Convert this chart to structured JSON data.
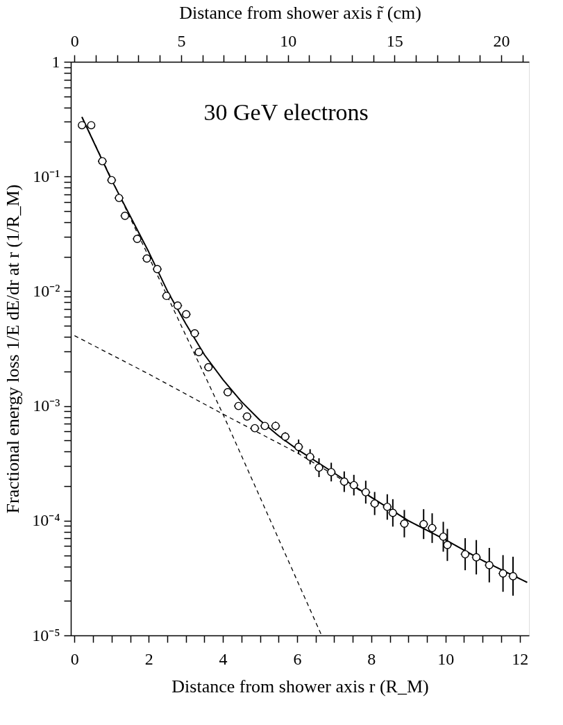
{
  "chart_data": {
    "type": "scatter",
    "xlabel": "Distance from shower axis r (R_M)",
    "x2label": "Distance from shower axis r̃ (cm)",
    "ylabel": "Fractional energy loss 1/E dE/dr at r (1/R_M)",
    "annotations": [
      "30 GeV electrons"
    ],
    "log": "y",
    "grid": false,
    "marker": "circle",
    "xlim": [
      -0.1,
      12.25
    ],
    "xticks": [
      0,
      {
        "value": 0.5,
        "label": null
      },
      {
        "value": 1,
        "label": null
      },
      {
        "value": 1.5,
        "label": null
      },
      2,
      {
        "value": 2.5,
        "label": null
      },
      {
        "value": 3,
        "label": null
      },
      {
        "value": 3.5,
        "label": null
      },
      4,
      {
        "value": 4.5,
        "label": null
      },
      {
        "value": 5,
        "label": null
      },
      {
        "value": 5.5,
        "label": null
      },
      6,
      {
        "value": 6.5,
        "label": null
      },
      {
        "value": 7,
        "label": null
      },
      {
        "value": 7.5,
        "label": null
      },
      8,
      {
        "value": 8.5,
        "label": null
      },
      {
        "value": 9,
        "label": null
      },
      {
        "value": 9.5,
        "label": null
      },
      10,
      {
        "value": 10.5,
        "label": null
      },
      {
        "value": 11,
        "label": null
      },
      {
        "value": 11.5,
        "label": null
      },
      12
    ],
    "x2lim": [
      -0.17,
      21.3
    ],
    "x2ticks": [
      0,
      {
        "value": 1,
        "label": null
      },
      {
        "value": 2,
        "label": null
      },
      {
        "value": 3,
        "label": null
      },
      {
        "value": 4,
        "label": null
      },
      5,
      {
        "value": 6,
        "label": null
      },
      {
        "value": 7,
        "label": null
      },
      {
        "value": 8,
        "label": null
      },
      {
        "value": 9,
        "label": null
      },
      10,
      {
        "value": 11,
        "label": null
      },
      {
        "value": 12,
        "label": null
      },
      {
        "value": 13,
        "label": null
      },
      {
        "value": 14,
        "label": null
      },
      15,
      {
        "value": 16,
        "label": null
      },
      {
        "value": 17,
        "label": null
      },
      {
        "value": 18,
        "label": null
      },
      {
        "value": 19,
        "label": null
      },
      20,
      {
        "value": 21,
        "label": null
      }
    ],
    "ylim": [
      1e-05,
      1
    ],
    "yticks": [
      {
        "value": 1e-05,
        "label": "10⁻⁵"
      },
      {
        "value": 2e-05,
        "label": null
      },
      {
        "value": 3e-05,
        "label": null
      },
      {
        "value": 4e-05,
        "label": null
      },
      {
        "value": 5e-05,
        "label": null
      },
      {
        "value": 6e-05,
        "label": null
      },
      {
        "value": 7e-05,
        "label": null
      },
      {
        "value": 8e-05,
        "label": null
      },
      {
        "value": 9e-05,
        "label": null
      },
      {
        "value": 0.0001,
        "label": "10⁻⁴"
      },
      {
        "value": 0.0002,
        "label": null
      },
      {
        "value": 0.0003,
        "label": null
      },
      {
        "value": 0.0004,
        "label": null
      },
      {
        "value": 0.0005,
        "label": null
      },
      {
        "value": 0.0006,
        "label": null
      },
      {
        "value": 0.0007,
        "label": null
      },
      {
        "value": 0.0008,
        "label": null
      },
      {
        "value": 0.0009,
        "label": null
      },
      {
        "value": 0.001,
        "label": "10⁻³"
      },
      {
        "value": 0.002,
        "label": null
      },
      {
        "value": 0.003,
        "label": null
      },
      {
        "value": 0.004,
        "label": null
      },
      {
        "value": 0.005,
        "label": null
      },
      {
        "value": 0.006,
        "label": null
      },
      {
        "value": 0.007,
        "label": null
      },
      {
        "value": 0.008,
        "label": null
      },
      {
        "value": 0.009,
        "label": null
      },
      {
        "value": 0.01,
        "label": "10⁻²"
      },
      {
        "value": 0.02,
        "label": null
      },
      {
        "value": 0.03,
        "label": null
      },
      {
        "value": 0.04,
        "label": null
      },
      {
        "value": 0.05,
        "label": null
      },
      {
        "value": 0.06,
        "label": null
      },
      {
        "value": 0.07,
        "label": null
      },
      {
        "value": 0.08,
        "label": null
      },
      {
        "value": 0.09,
        "label": null
      },
      {
        "value": 0.1,
        "label": "10⁻¹"
      },
      {
        "value": 0.2,
        "label": null
      },
      {
        "value": 0.3,
        "label": null
      },
      {
        "value": 0.4,
        "label": null
      },
      {
        "value": 0.5,
        "label": null
      },
      {
        "value": 0.6,
        "label": null
      },
      {
        "value": 0.7,
        "label": null
      },
      {
        "value": 0.8,
        "label": null
      },
      {
        "value": 0.9,
        "label": null
      },
      1
    ],
    "series": [
      {
        "type": "line",
        "marker": "none",
        "line_style": "dashed",
        "color": "#000000",
        "x": [
          0.2,
          2,
          4,
          6.66
        ],
        "values": [
          0.33,
          0.02,
          0.00085,
          1e-05
        ]
      },
      {
        "type": "line",
        "marker": "none",
        "line_style": "dashed",
        "color": "#000000",
        "x": [
          0,
          2,
          4,
          6,
          7,
          8,
          9,
          10,
          11,
          12.2
        ],
        "values": [
          0.0041,
          0.0019,
          0.00085,
          0.00039,
          0.00025,
          0.00016,
          0.0001,
          6.8e-05,
          4.5e-05,
          2.9e-05
        ]
      },
      {
        "type": "line",
        "marker": "none",
        "line_style": "solid",
        "color": "#000000",
        "x": [
          0.2,
          1,
          2,
          2.5,
          3,
          3.5,
          4,
          4.5,
          5,
          5.5,
          6,
          7,
          8,
          9,
          10,
          11,
          12.2
        ],
        "values": [
          0.33,
          0.093,
          0.022,
          0.0101,
          0.0052,
          0.0028,
          0.0017,
          0.00109,
          0.00075,
          0.00055,
          0.00042,
          0.00026,
          0.00016,
          0.0001,
          6.8e-05,
          4.5e-05,
          2.9e-05
        ]
      },
      {
        "color": "#000000",
        "x": [
          0.2,
          0.45,
          0.75,
          1.0,
          1.2,
          1.36,
          1.69,
          1.95,
          2.23,
          2.48,
          2.78,
          3.01,
          3.24,
          3.35,
          3.61,
          4.13,
          4.42,
          4.65,
          4.86,
          5.13,
          5.42,
          5.68,
          6.04,
          6.35,
          6.59,
          6.92,
          7.27,
          7.53,
          7.85,
          8.09,
          8.43,
          8.58,
          8.89,
          9.41,
          9.64,
          9.94,
          10.05,
          10.53,
          10.83,
          11.18,
          11.55,
          11.82
        ],
        "values": [
          0.28,
          0.28,
          0.136,
          0.093,
          0.065,
          0.0455,
          0.0286,
          0.0193,
          0.0156,
          0.0091,
          0.0075,
          0.0063,
          0.0043,
          0.00295,
          0.00218,
          0.00132,
          0.001,
          0.00081,
          0.00064,
          0.00067,
          0.00067,
          0.00054,
          0.00044,
          0.00036,
          0.00029,
          0.000265,
          0.000219,
          0.000204,
          0.000177,
          0.000141,
          0.000132,
          0.000117,
          9.44e-05,
          9.34e-05,
          8.63e-05,
          7.25e-05,
          6.15e-05,
          5.1e-05,
          4.8e-05,
          4.1e-05,
          3.47e-05,
          3.28e-05
        ],
        "errors": [
          null,
          null,
          null,
          null,
          null,
          null,
          null,
          null,
          null,
          null,
          null,
          null,
          null,
          null,
          null,
          null,
          null,
          null,
          null,
          null,
          [
            0.00061,
            0.00073
          ],
          [
            0.00049,
            0.00059
          ],
          [
            0.00038,
            0.00051
          ],
          [
            0.00031,
            0.00042
          ],
          [
            0.00024,
            0.00035
          ],
          [
            0.00022,
            0.00032
          ],
          [
            0.000178,
            0.000269
          ],
          [
            0.000166,
            0.000251
          ],
          [
            0.000141,
            0.000223
          ],
          [
            0.000112,
            0.000178
          ],
          [
            0.000102,
            0.00017
          ],
          [
            8.88e-05,
            0.000154
          ],
          [
            7.16e-05,
            0.000124
          ],
          [
            6.92e-05,
            0.000126
          ],
          [
            6.4e-05,
            0.000116
          ],
          [
            5.37e-05,
            9.78e-05
          ],
          [
            4.46e-05,
            8.49e-05
          ],
          [
            3.7e-05,
            7.04e-05
          ],
          [
            3.4e-05,
            6.78e-05
          ],
          [
            2.9e-05,
            5.79e-05
          ],
          [
            2.4e-05,
            5.01e-05
          ],
          [
            2.22e-05,
            4.85e-05
          ]
        ],
        "xerrors": [
          null,
          null,
          0.12,
          0.12,
          0.12,
          0.12,
          0.12,
          0.12,
          0.12,
          0.12,
          0.12,
          0.12,
          0.12,
          0.12,
          0.12,
          0.12,
          0.12,
          0.12,
          0.12,
          0.12,
          0.12,
          0.12,
          0.12,
          0.12,
          0.12,
          0.12,
          0.12,
          0.12,
          0.12,
          0.12,
          0.12,
          0.12,
          0.12,
          0.12,
          0.12,
          0.12,
          0.12,
          0.12,
          0.12,
          0.12,
          0.12,
          0.12
        ]
      }
    ]
  }
}
